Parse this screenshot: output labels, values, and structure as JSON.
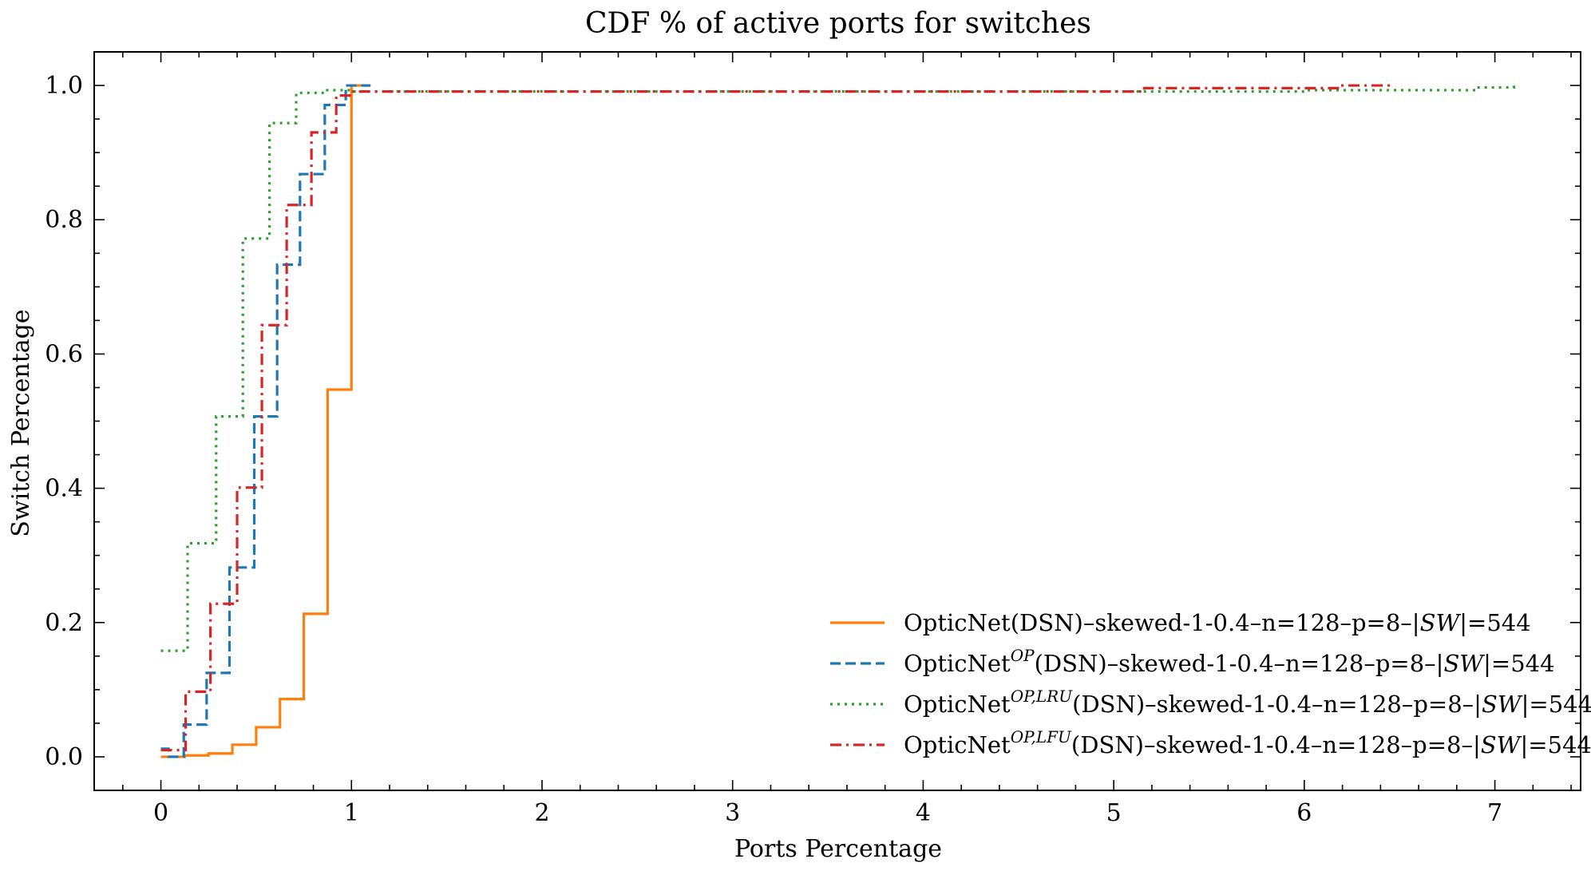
{
  "chart_data": {
    "type": "line",
    "title": "CDF % of active ports for switches",
    "xlabel": "Ports Percentage",
    "ylabel": "Switch Percentage",
    "xlim": [
      -0.35,
      7.45
    ],
    "ylim": [
      -0.05,
      1.05
    ],
    "xticks": [
      0,
      1,
      2,
      3,
      4,
      5,
      6,
      7
    ],
    "xtick_labels": [
      "0",
      "1",
      "2",
      "3",
      "4",
      "5",
      "6",
      "7"
    ],
    "yticks": [
      0.0,
      0.2,
      0.4,
      0.6,
      0.8,
      1.0
    ],
    "ytick_labels": [
      "0.0",
      "0.2",
      "0.4",
      "0.6",
      "0.8",
      "1.0"
    ],
    "grid": false,
    "legend_position": "lower-right",
    "step": true,
    "series": [
      {
        "name": "OpticNet(DSN)–skewed-1-0.4–n=128–p=8–|SW|=544",
        "legend_base": "OpticNet",
        "legend_sup": "",
        "legend_mid": "(DSN)–skewed-1-0.4–n=128–p=8–|",
        "legend_var": "SW",
        "legend_end": "|=544",
        "color": "#ff7f0e",
        "dash": "solid",
        "x": [
          0,
          0.125,
          0.25,
          0.375,
          0.5,
          0.625,
          0.75,
          0.875,
          1.0,
          1.1
        ],
        "y": [
          0.0,
          0.002,
          0.005,
          0.018,
          0.044,
          0.086,
          0.213,
          0.547,
          1.0,
          1.0
        ]
      },
      {
        "name": "OpticNetOP(DSN)–skewed-1-0.4–n=128–p=8–|SW|=544",
        "legend_base": "OpticNet",
        "legend_sup": "OP",
        "legend_mid": "(DSN)–skewed-1-0.4–n=128–p=8–|",
        "legend_var": "SW",
        "legend_end": "|=544",
        "color": "#1f77b4",
        "dash": "dashed",
        "x": [
          0,
          0.04,
          0.12,
          0.24,
          0.36,
          0.49,
          0.61,
          0.73,
          0.86,
          0.97,
          1.1
        ],
        "y": [
          0.012,
          0.0,
          0.048,
          0.125,
          0.282,
          0.507,
          0.733,
          0.868,
          0.971,
          1.0,
          1.0
        ]
      },
      {
        "name": "OpticNetOP,LRU(DSN)–skewed-1-0.4–n=128–p=8–|SW|=544",
        "legend_base": "OpticNet",
        "legend_sup": "OP,LRU",
        "legend_mid": "(DSN)–skewed-1-0.4–n=128–p=8–|",
        "legend_var": "SW",
        "legend_end": "|=544",
        "color": "#2ca02c",
        "dash": "dotted",
        "x": [
          0,
          0.14,
          0.29,
          0.43,
          0.57,
          0.71,
          0.86,
          1.0,
          6.0,
          6.9,
          7.1
        ],
        "y": [
          0.158,
          0.318,
          0.507,
          0.772,
          0.944,
          0.989,
          0.993,
          0.991,
          0.993,
          0.997,
          1.0
        ]
      },
      {
        "name": "OpticNetOP,LFU(DSN)–skewed-1-0.4–n=128–p=8–|SW|=544",
        "legend_base": "OpticNet",
        "legend_sup": "OP,LFU",
        "legend_mid": "(DSN)–skewed-1-0.4–n=128–p=8–|",
        "legend_var": "SW",
        "legend_end": "|=544",
        "color": "#d62728",
        "dash": "dashdot",
        "x": [
          0,
          0.13,
          0.26,
          0.4,
          0.53,
          0.66,
          0.79,
          0.92,
          1.0,
          5.16,
          6.2,
          6.45
        ],
        "y": [
          0.01,
          0.097,
          0.228,
          0.401,
          0.643,
          0.822,
          0.93,
          0.985,
          0.991,
          0.996,
          1.0,
          1.0
        ]
      }
    ]
  }
}
